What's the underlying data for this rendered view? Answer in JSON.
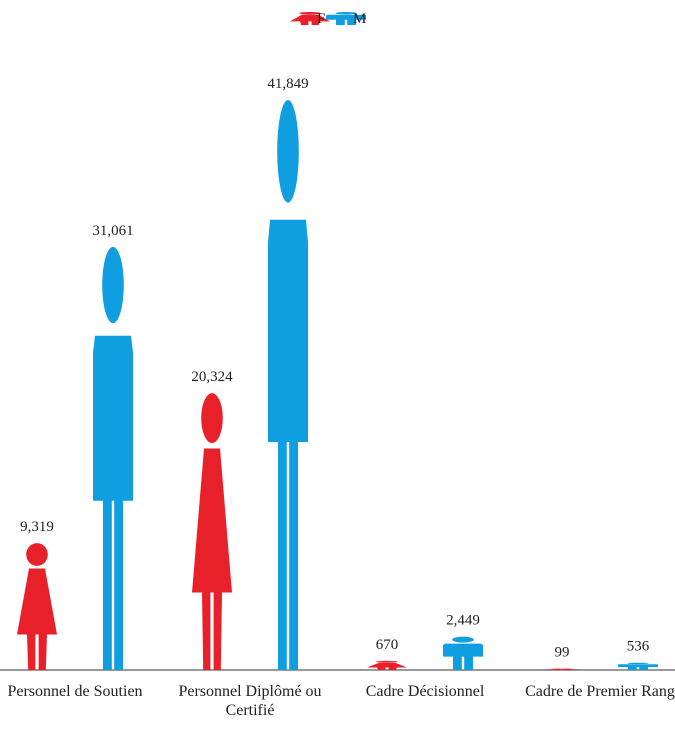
{
  "chart_data": {
    "type": "pictograph",
    "categories": [
      "Personnel de Soutien",
      "Personnel Diplômé ou Certifié",
      "Cadre Décisionnel",
      "Cadre de Premier Rang"
    ],
    "series": [
      {
        "name": "F",
        "color": "#e8202a",
        "values": [
          9319,
          20324,
          670,
          99
        ],
        "value_labels": [
          "9,319",
          "20,324",
          "670",
          "99"
        ]
      },
      {
        "name": "M",
        "color": "#0f9ee0",
        "values": [
          31061,
          41849,
          2449,
          536
        ],
        "value_labels": [
          "31,061",
          "41,849",
          "2,449",
          "536"
        ]
      }
    ]
  }
}
